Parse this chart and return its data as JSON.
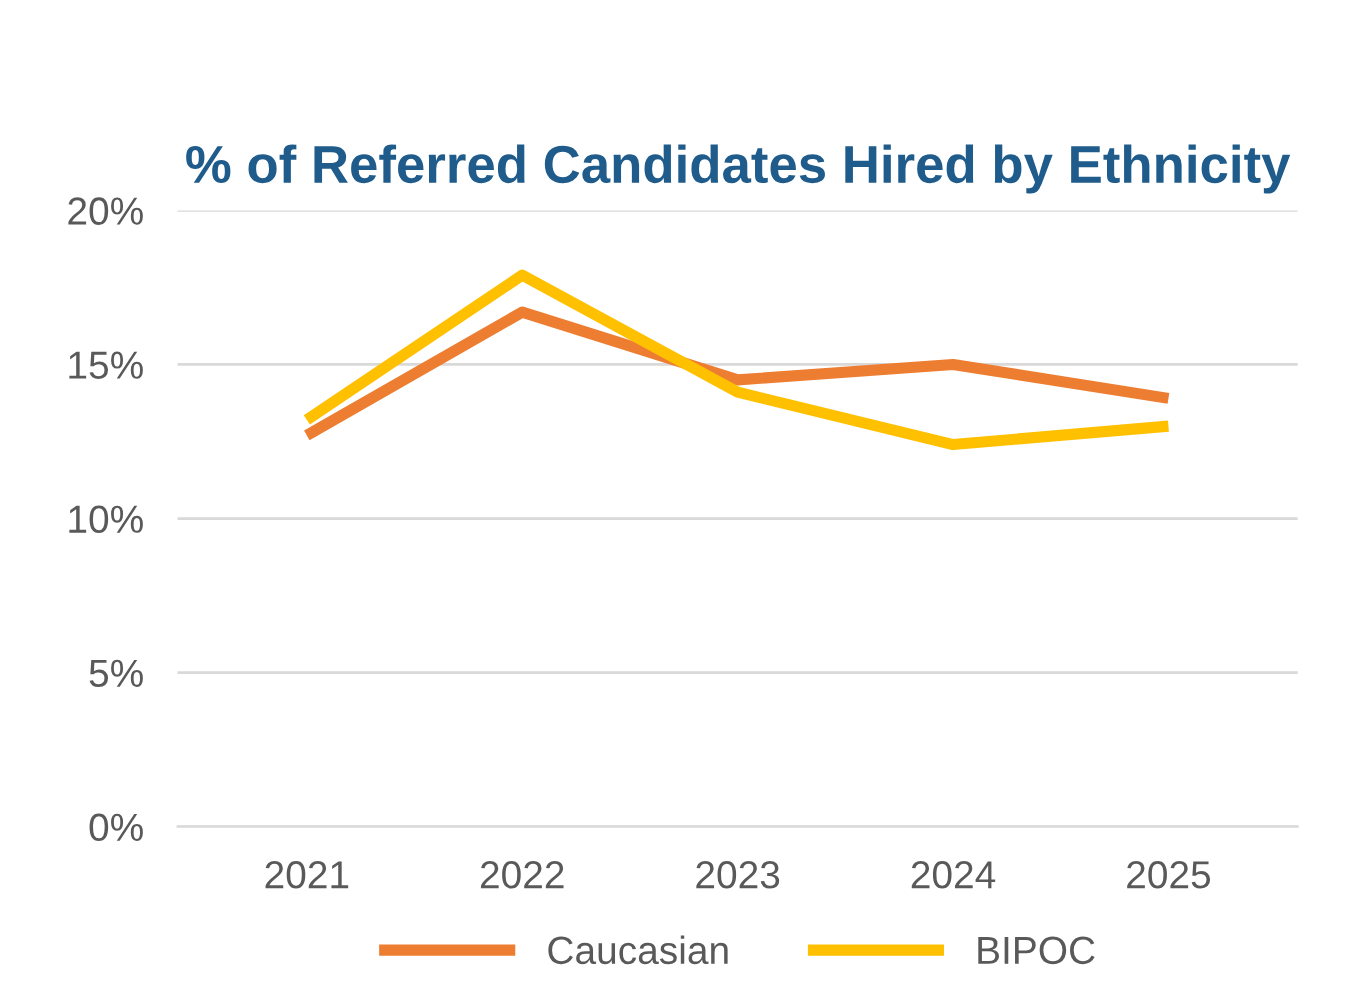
{
  "chart_data": {
    "type": "line",
    "title": "% of Referred Candidates Hired by Ethnicity",
    "categories": [
      "2021",
      "2022",
      "2023",
      "2024",
      "2025"
    ],
    "series": [
      {
        "name": "Caucasian",
        "color": "#ed7d31",
        "values": [
          12.7,
          16.7,
          14.5,
          15.0,
          13.9
        ]
      },
      {
        "name": "BIPOC",
        "color": "#ffc000",
        "values": [
          13.2,
          17.9,
          14.1,
          12.4,
          13.0
        ]
      }
    ],
    "ylim": [
      0,
      20
    ],
    "yticks": [
      {
        "value": 0,
        "label": "0%"
      },
      {
        "value": 5,
        "label": "5%"
      },
      {
        "value": 10,
        "label": "10%"
      },
      {
        "value": 15,
        "label": "15%"
      },
      {
        "value": 20,
        "label": "20%"
      }
    ],
    "grid": "y",
    "legend": "bottom",
    "marker": "none",
    "line_style": "solid"
  }
}
